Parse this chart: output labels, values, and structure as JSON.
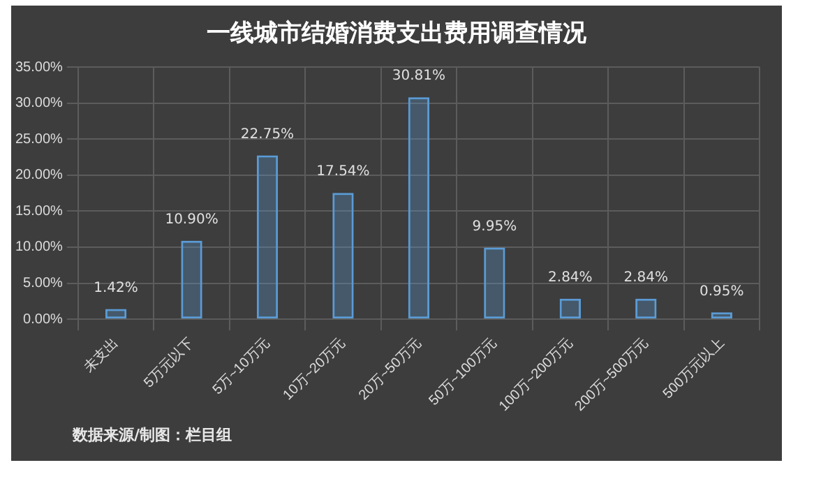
{
  "chart_data": {
    "type": "bar",
    "title": "一线城市结婚消费支出费用调查情况",
    "categories": [
      "未支出",
      "5万元以下",
      "5万~10万元",
      "10万~20万元",
      "20万~50万元",
      "50万~100万元",
      "100万~200万元",
      "200万~500万元",
      "500万元以上"
    ],
    "values": [
      1.42,
      10.9,
      22.75,
      17.54,
      30.81,
      9.95,
      2.84,
      2.84,
      0.95
    ],
    "value_labels": [
      "1.42%",
      "10.90%",
      "22.75%",
      "17.54%",
      "30.81%",
      "9.95%",
      "2.84%",
      "2.84%",
      "0.95%"
    ],
    "color": "#5b9bd5",
    "ylim": [
      0,
      35
    ],
    "yticks": [
      {
        "value": 0,
        "label": "0.00%"
      },
      {
        "value": 5,
        "label": "5.00%"
      },
      {
        "value": 10,
        "label": "10.00%"
      },
      {
        "value": 15,
        "label": "15.00%"
      },
      {
        "value": 20,
        "label": "20.00%"
      },
      {
        "value": 25,
        "label": "25.00%"
      },
      {
        "value": 30,
        "label": "30.00%"
      },
      {
        "value": 35,
        "label": "35.00%"
      }
    ],
    "grid": true,
    "annotations": [
      "数据来源/制图：栏目组"
    ]
  }
}
